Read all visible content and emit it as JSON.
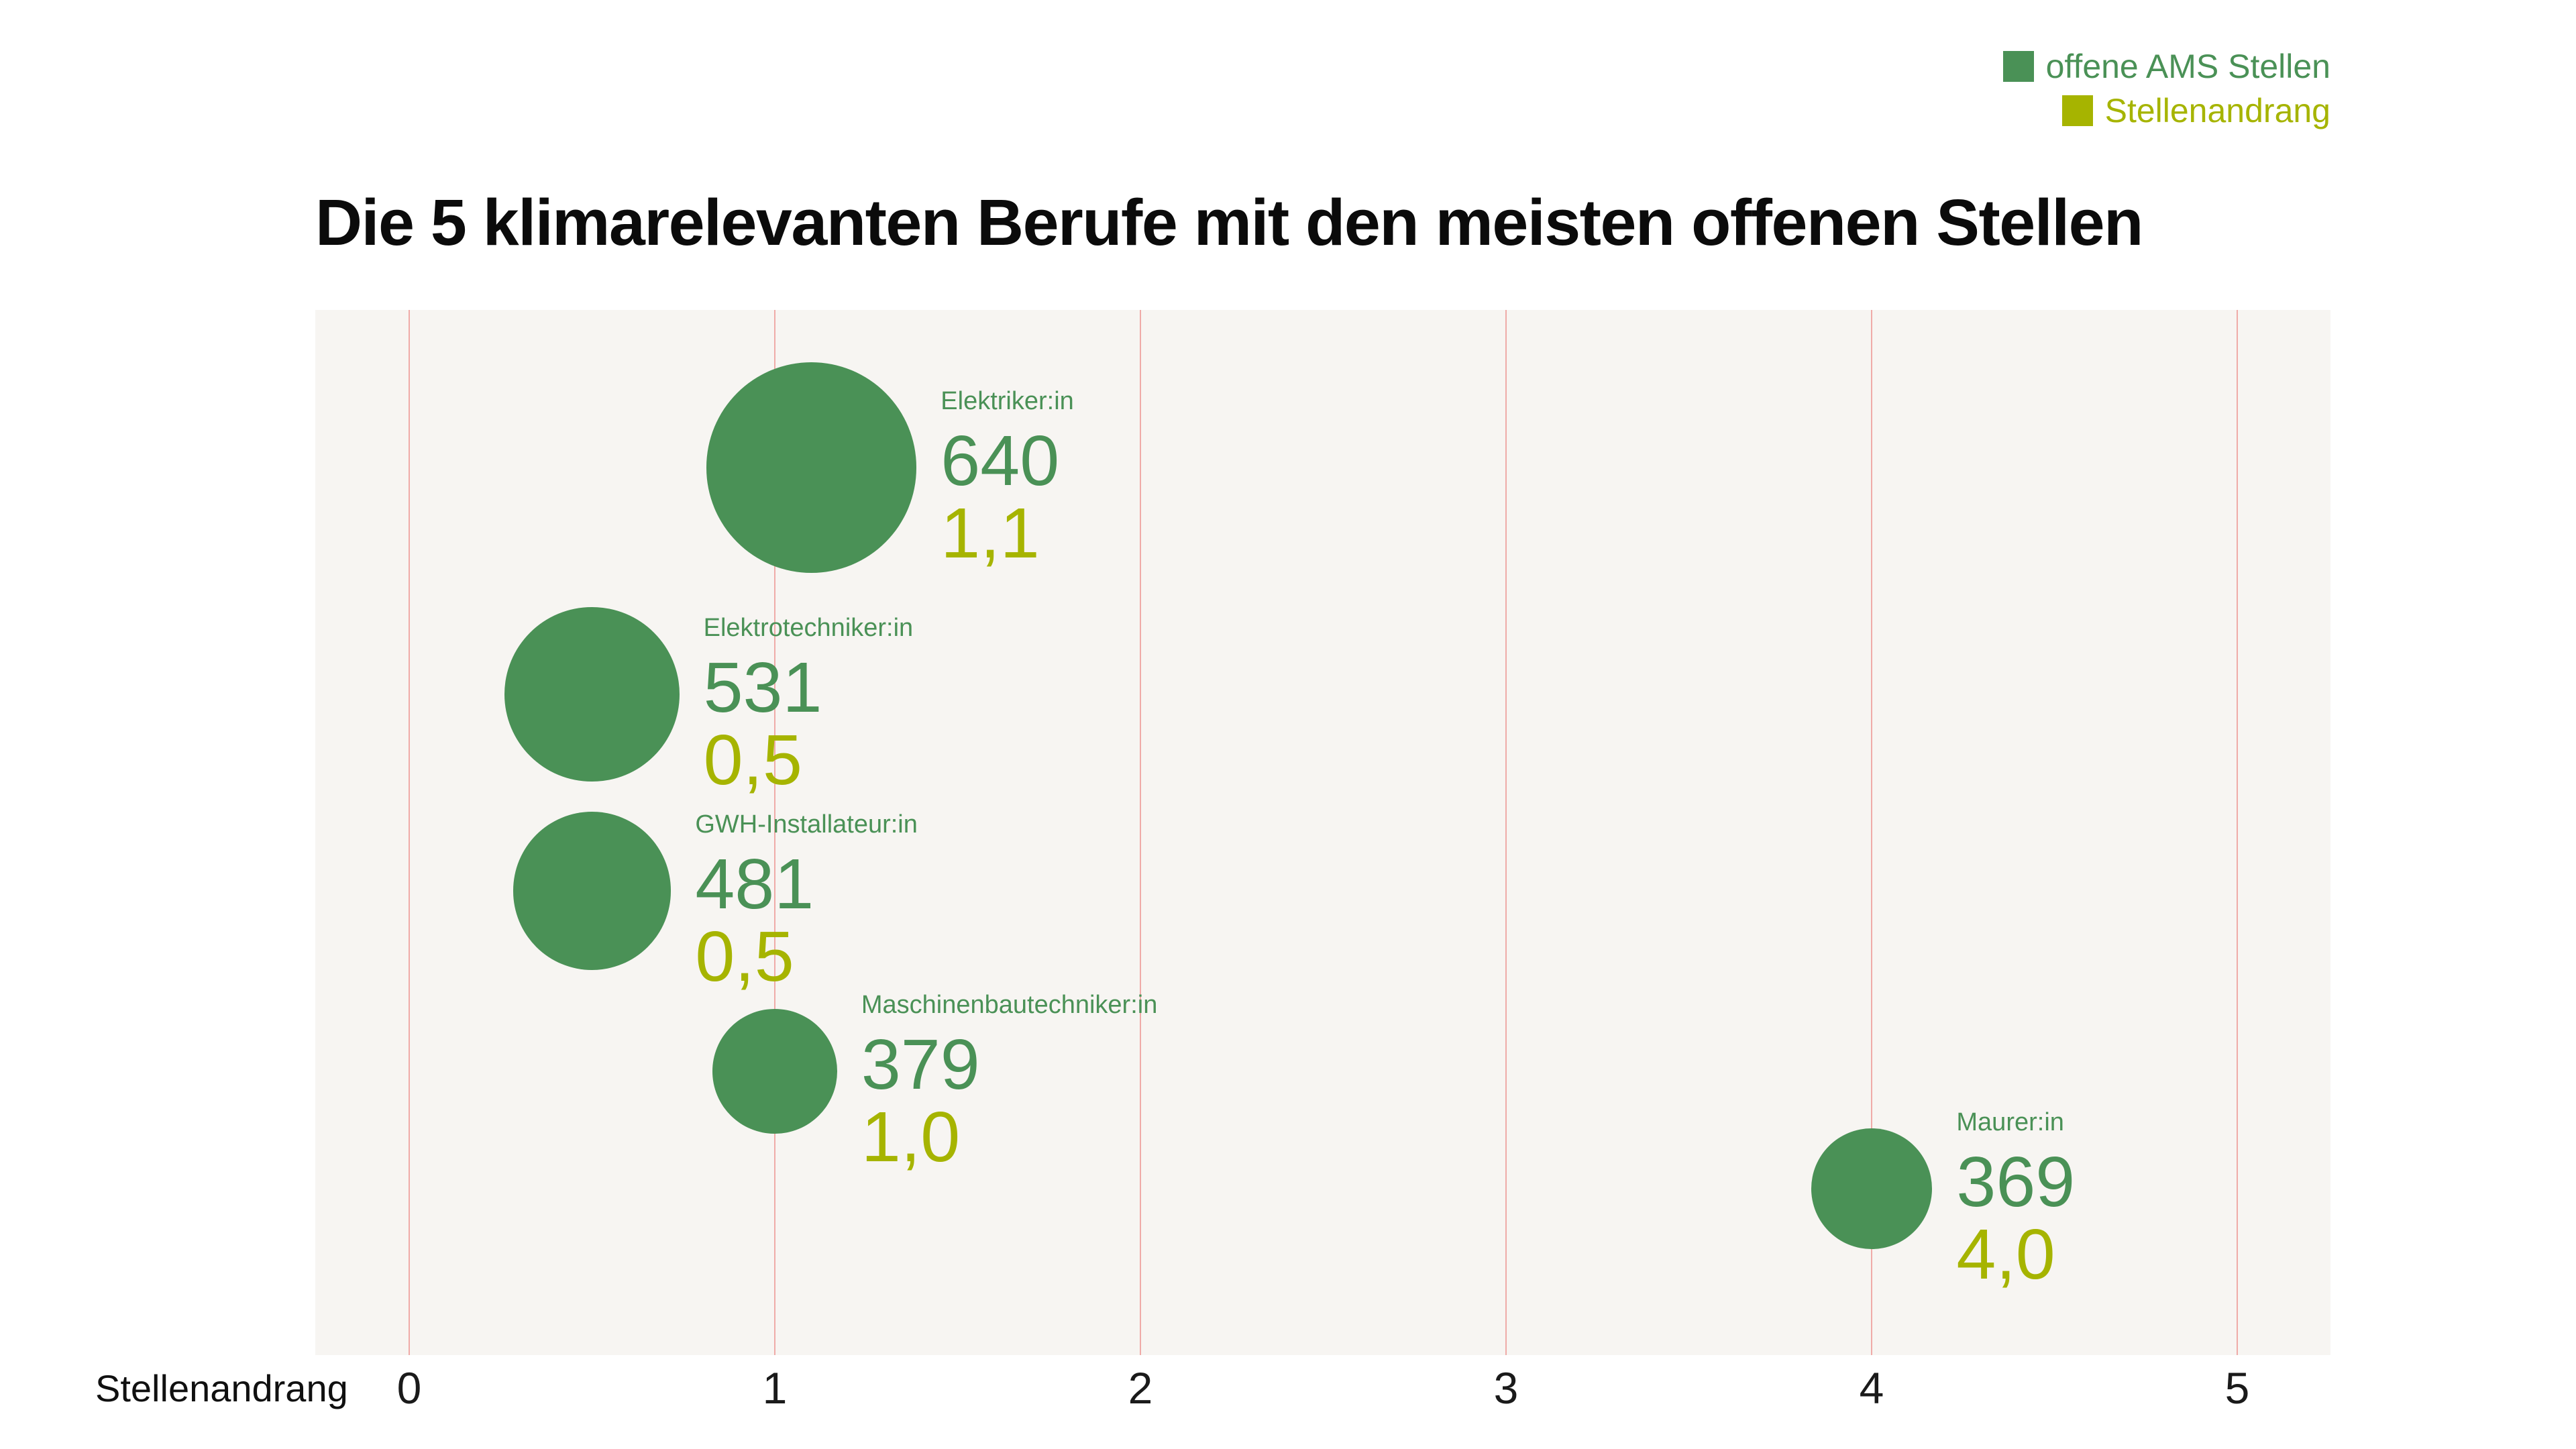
{
  "title": "Die 5 klimarelevanten Berufe mit den meisten offenen Stellen",
  "legend": {
    "items": [
      {
        "label": "offene AMS Stellen",
        "color": "#4a9156"
      },
      {
        "label": "Stellenandrang",
        "color": "#a6b400"
      }
    ]
  },
  "axis": {
    "label": "Stellenandrang",
    "ticks": [
      "0",
      "1",
      "2",
      "3",
      "4",
      "5"
    ]
  },
  "colors": {
    "bubble_green": "#4a9156",
    "andrang_olive": "#a6b400",
    "gridline_pink": "#efaba8",
    "plot_background": "#f7f5f2",
    "page_background": "#ffffff",
    "title_black": "#0b0b0b"
  },
  "chart_data": {
    "type": "scatter",
    "subtype": "bubble",
    "title": "Die 5 klimarelevanten Berufe mit den meisten offenen Stellen",
    "xlabel": "Stellenandrang",
    "xlim": [
      -0.25,
      5.25
    ],
    "x_ticks": [
      0,
      1,
      2,
      3,
      4,
      5
    ],
    "grid": "vertical",
    "legend_position": "top-right",
    "bubble_size_encodes": "offene AMS Stellen",
    "x_encodes": "Stellenandrang",
    "points": [
      {
        "label": "Elektriker:in",
        "offene_ams_stellen": 640,
        "stellenandrang": 1.1,
        "stellen_text": "640",
        "andrang_text": "1,1"
      },
      {
        "label": "Elektrotechniker:in",
        "offene_ams_stellen": 531,
        "stellenandrang": 0.5,
        "stellen_text": "531",
        "andrang_text": "0,5"
      },
      {
        "label": "GWH-Installateur:in",
        "offene_ams_stellen": 481,
        "stellenandrang": 0.5,
        "stellen_text": "481",
        "andrang_text": "0,5"
      },
      {
        "label": "Maschinenbautechniker:in",
        "offene_ams_stellen": 379,
        "stellenandrang": 1.0,
        "stellen_text": "379",
        "andrang_text": "1,0"
      },
      {
        "label": "Maurer:in",
        "offene_ams_stellen": 369,
        "stellenandrang": 4.0,
        "stellen_text": "369",
        "andrang_text": "4,0"
      }
    ]
  }
}
